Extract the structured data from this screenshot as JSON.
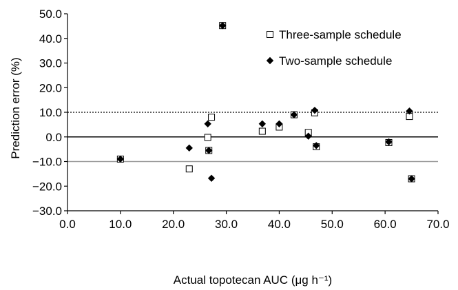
{
  "chart_data": {
    "type": "scatter",
    "xlabel": "Actual topotecan AUC (μg h⁻¹)",
    "ylabel": "Prediction error (%)",
    "xlim": [
      0,
      70
    ],
    "ylim": [
      -30,
      50
    ],
    "x_ticks": [
      "0.0",
      "10.0",
      "20.0",
      "30.0",
      "40.0",
      "50.0",
      "60.0",
      "70.0"
    ],
    "y_ticks": [
      "50.0",
      "40.0",
      "30.0",
      "20.0",
      "10.0",
      "0.0",
      "−10.0",
      "−20.0",
      "−30.0"
    ],
    "x_tick_values": [
      0,
      10,
      20,
      30,
      40,
      50,
      60,
      70
    ],
    "y_tick_values": [
      50,
      40,
      30,
      20,
      10,
      0,
      -10,
      -20,
      -30
    ],
    "legend_position": "top-right",
    "reference_lines": [
      {
        "y": 10,
        "style": "dotted",
        "color": "#000000"
      },
      {
        "y": 0,
        "style": "solid",
        "color": "#000000"
      },
      {
        "y": -10,
        "style": "solid",
        "color": "#999999"
      }
    ],
    "series": [
      {
        "name": "Three-sample schedule",
        "marker": "open-square",
        "x": [
          10.0,
          23.0,
          26.5,
          26.7,
          27.2,
          29.3,
          36.8,
          40.0,
          42.8,
          45.5,
          46.7,
          47.0,
          60.7,
          64.6,
          65.0
        ],
        "y": [
          -9.0,
          -13.0,
          -0.2,
          -5.5,
          8.0,
          45.2,
          2.3,
          4.0,
          9.0,
          1.8,
          9.8,
          -4.0,
          -2.3,
          8.3,
          -17.0
        ]
      },
      {
        "name": "Two-sample schedule",
        "marker": "filled-diamond",
        "x": [
          10.0,
          23.0,
          26.5,
          26.7,
          27.2,
          29.3,
          36.8,
          40.0,
          42.8,
          45.5,
          46.7,
          47.0,
          60.7,
          64.6,
          65.0
        ],
        "y": [
          -9.0,
          -4.5,
          5.3,
          -5.5,
          -16.8,
          45.2,
          5.3,
          5.3,
          9.0,
          0.3,
          10.8,
          -3.5,
          -2.0,
          10.5,
          -17.0
        ]
      }
    ]
  }
}
